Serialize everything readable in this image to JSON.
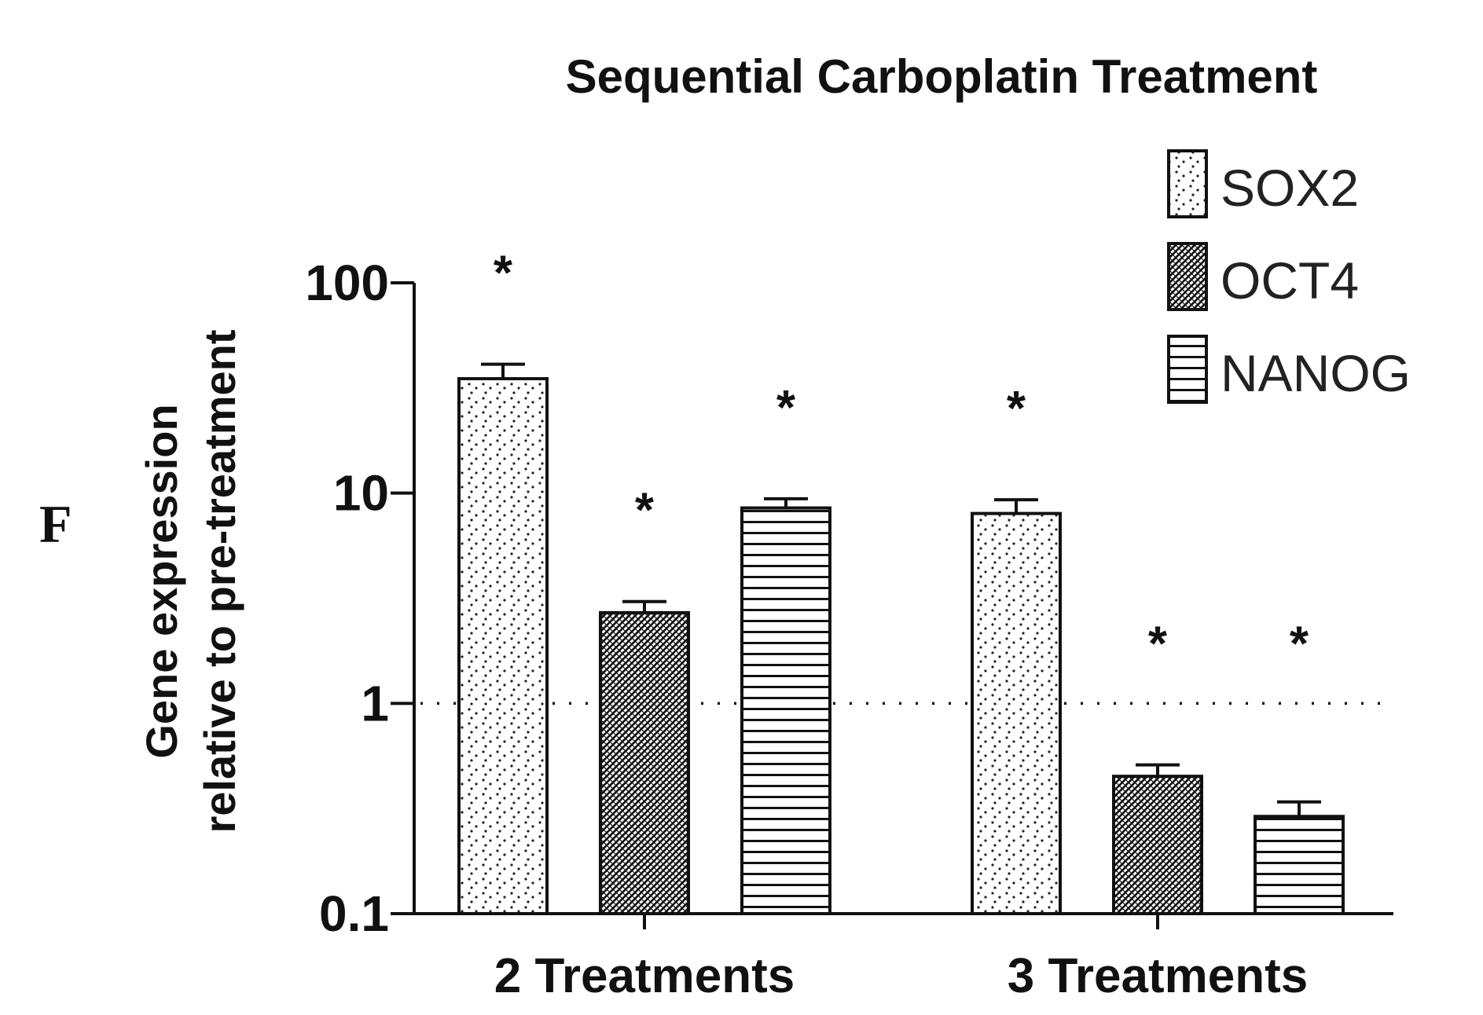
{
  "panel_label": "F",
  "chart_data": {
    "type": "bar",
    "title": "Sequential Carboplatin Treatment",
    "ylabel_line1": "Gene expression",
    "ylabel_line2": "relative to pre-treatment",
    "xlabel": "",
    "yscale": "log",
    "ylim": [
      0.1,
      100
    ],
    "yticks": [
      0.1,
      1,
      10,
      100
    ],
    "ytick_labels": [
      "0.1",
      "1",
      "10",
      "100"
    ],
    "categories": [
      "2 Treatments",
      "3 Treatments"
    ],
    "reference_line": 1,
    "legend_position": "top-right",
    "series": [
      {
        "name": "SOX2",
        "pattern": "dots",
        "values": [
          35,
          8.0
        ],
        "errors": [
          6,
          1.3
        ],
        "significant": [
          true,
          true
        ]
      },
      {
        "name": "OCT4",
        "pattern": "crosshatch",
        "values": [
          2.7,
          0.45
        ],
        "errors": [
          0.35,
          0.06
        ],
        "significant": [
          true,
          true
        ]
      },
      {
        "name": "NANOG",
        "pattern": "horizontal-lines",
        "values": [
          8.5,
          0.29
        ],
        "errors": [
          0.9,
          0.05
        ],
        "significant": [
          true,
          true
        ]
      }
    ],
    "significance_marker": "*"
  }
}
